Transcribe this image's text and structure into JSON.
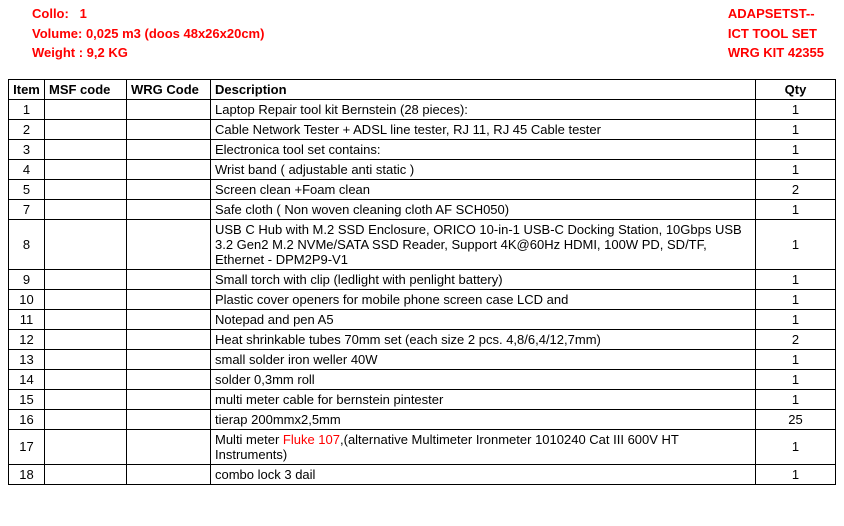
{
  "header": {
    "collo_label": "Collo:",
    "collo_value": "1",
    "volume_label": "Volume:",
    "volume_value": "0,025 m3 (doos 48x26x20cm)",
    "weight_label": "Weight :",
    "weight_value": "9,2 KG",
    "right_line1": "ADAPSETST--",
    "right_line2": "ICT TOOL SET",
    "right_line3": "WRG KIT 42355"
  },
  "columns": {
    "item": "Item",
    "msf": "MSF code",
    "wrg": "WRG Code",
    "desc": "Description",
    "qty": "Qty"
  },
  "rows": [
    {
      "item": "1",
      "msf": "",
      "wrg": "",
      "desc": "Laptop Repair tool kit Bernstein (28 pieces):",
      "qty": "1"
    },
    {
      "item": "2",
      "msf": "",
      "wrg": "",
      "desc": "Cable Network Tester +  ADSL line tester, RJ 11, RJ 45 Cable tester",
      "qty": "1"
    },
    {
      "item": "3",
      "msf": "",
      "wrg": "",
      "desc": "Electronica tool set contains:",
      "qty": "1"
    },
    {
      "item": "4",
      "msf": "",
      "wrg": "",
      "desc": "Wrist band ( adjustable anti static )",
      "qty": "1"
    },
    {
      "item": "5",
      "msf": "",
      "wrg": "",
      "desc": "Screen clean +Foam clean",
      "qty": "2"
    },
    {
      "item": "7",
      "msf": "",
      "wrg": "",
      "desc": "Safe cloth  ( Non woven cleaning cloth AF SCH050)",
      "qty": "1"
    },
    {
      "item": "8",
      "msf": "",
      "wrg": "",
      "desc": "USB C Hub with M.2 SSD Enclosure, ORICO 10-in-1 USB-C Docking Station, 10Gbps USB 3.2 Gen2 M.2 NVMe/SATA SSD Reader, Support 4K@60Hz HDMI, 100W PD, SD/TF, Ethernet - DPM2P9-V1",
      "qty": "1"
    },
    {
      "item": "9",
      "msf": "",
      "wrg": "",
      "desc": "Small torch with clip (ledlight with penlight battery)",
      "qty": "1"
    },
    {
      "item": "10",
      "msf": "",
      "wrg": "",
      "desc": "Plastic cover openers for mobile phone screen case LCD and",
      "qty": "1"
    },
    {
      "item": "11",
      "msf": "",
      "wrg": "",
      "desc": "Notepad and pen A5",
      "qty": "1"
    },
    {
      "item": "12",
      "msf": "",
      "wrg": "",
      "desc": "Heat shrinkable tubes 70mm set (each size 2 pcs.  4,8/6,4/12,7mm)",
      "qty": "2"
    },
    {
      "item": "13",
      "msf": "",
      "wrg": "",
      "desc": "small solder iron weller 40W",
      "qty": "1"
    },
    {
      "item": "14",
      "msf": "",
      "wrg": "",
      "desc": "solder 0,3mm roll",
      "qty": "1"
    },
    {
      "item": "15",
      "msf": "",
      "wrg": "",
      "desc": "multi meter cable for bernstein pintester",
      "qty": "1"
    },
    {
      "item": "16",
      "msf": "",
      "wrg": "",
      "desc": "tierap 200mmx2,5mm",
      "qty": "25"
    },
    {
      "item": "17",
      "msf": "",
      "wrg": "",
      "desc_pre": "Multi meter ",
      "desc_red": "Fluke 107",
      "desc_post": ",(alternative Multimeter Ironmeter 1010240 Cat III 600V HT Instruments)",
      "qty": "1"
    },
    {
      "item": "18",
      "msf": "",
      "wrg": "",
      "desc": "combo lock 3 dail",
      "qty": "1"
    }
  ]
}
